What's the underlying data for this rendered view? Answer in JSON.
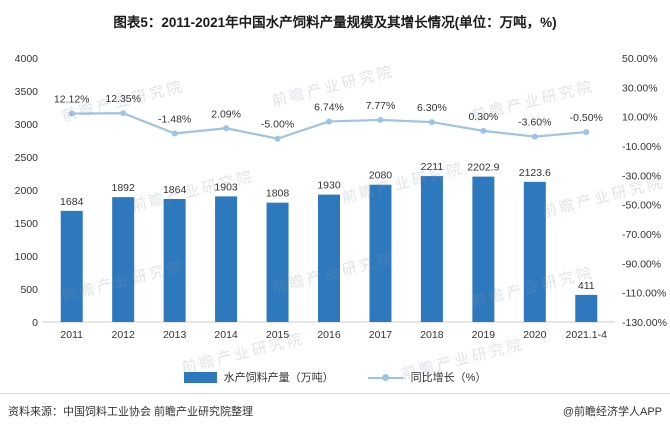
{
  "title": "图表5：2011-2021年中国水产饲料产量规模及其增长情况(单位：万吨，%)",
  "watermark": "前瞻产业研究院",
  "chart_data": {
    "type": "bar+line",
    "categories": [
      "2011",
      "2012",
      "2013",
      "2014",
      "2015",
      "2016",
      "2017",
      "2018",
      "2019",
      "2020",
      "2021.1-4"
    ],
    "series": [
      {
        "name": "水产饲料产量（万吨）",
        "type": "bar",
        "axis": "left",
        "values": [
          1684,
          1892,
          1864,
          1903,
          1808,
          1930,
          2080,
          2211,
          2202.9,
          2123.6,
          411
        ],
        "color": "#2E79BD"
      },
      {
        "name": "同比增长（%）",
        "type": "line",
        "axis": "right",
        "values": [
          12.12,
          12.35,
          -1.48,
          2.09,
          -5.0,
          6.74,
          7.77,
          6.3,
          0.3,
          -3.6,
          -0.5
        ],
        "labels": [
          "12.12%",
          "12.35%",
          "-1.48%",
          "2.09%",
          "-5.00%",
          "6.74%",
          "7.77%",
          "6.30%",
          "0.30%",
          "-3.60%",
          "-0.50%"
        ],
        "color": "#9DC3E6"
      }
    ],
    "left_axis": {
      "min": 0,
      "max": 4000,
      "step": 500,
      "ticks": [
        "4000",
        "3500",
        "3000",
        "2500",
        "2000",
        "1500",
        "1000",
        "500",
        "0"
      ]
    },
    "right_axis": {
      "min": -130,
      "max": 50,
      "step": 20,
      "ticks": [
        "50.00%",
        "30.00%",
        "10.00%",
        "-10.00%",
        "-30.00%",
        "-50.00%",
        "-70.00%",
        "-90.00%",
        "-110.00%",
        "-130.00%"
      ]
    },
    "legend": [
      "水产饲料产量（万吨）",
      "同比增长（%）"
    ],
    "grid": false,
    "legend_position": "bottom"
  },
  "footer": {
    "source": "资料来源：中国饲料工业协会 前瞻产业研究院整理",
    "credit": "@前瞻经济学人APP"
  }
}
